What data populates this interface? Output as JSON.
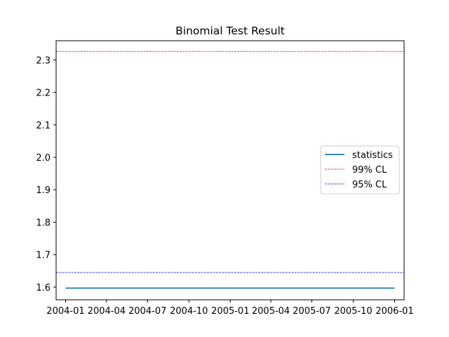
{
  "chart_data": {
    "type": "line",
    "title": "Binomial Test Result",
    "xlabel": "",
    "ylabel": "",
    "x_ticks": [
      "2004-01",
      "2004-04",
      "2004-07",
      "2004-10",
      "2005-01",
      "2005-04",
      "2005-07",
      "2005-10",
      "2006-01"
    ],
    "y_ticks": [
      "1.6",
      "1.7",
      "1.8",
      "1.9",
      "2.0",
      "2.1",
      "2.2",
      "2.3"
    ],
    "xlim": [
      "2003-12-11",
      "2006-01-22"
    ],
    "ylim": [
      1.561,
      2.359
    ],
    "grid": false,
    "legend_position": "center-right",
    "series": [
      {
        "name": "statistics",
        "color": "#1f77b4",
        "style": "solid",
        "x": [
          "2004-01-01",
          "2006-01-01"
        ],
        "y": [
          1.597,
          1.597
        ]
      },
      {
        "name": "99% CL",
        "color": "#ff0000",
        "style": "dashed",
        "x": [
          "2003-12-11",
          "2006-01-22"
        ],
        "y": [
          2.326,
          2.326
        ]
      },
      {
        "name": "95% CL",
        "color": "#0000ff",
        "style": "dashed",
        "x": [
          "2003-12-11",
          "2006-01-22"
        ],
        "y": [
          1.645,
          1.645
        ]
      }
    ]
  }
}
